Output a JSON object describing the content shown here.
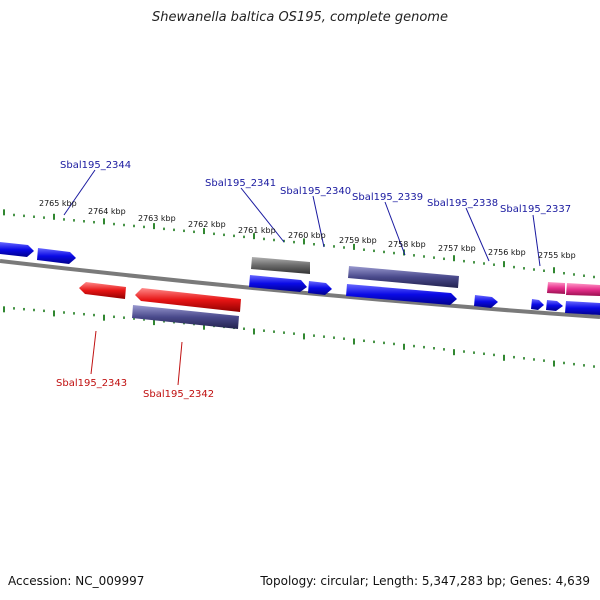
{
  "title": "Shewanella baltica OS195, complete genome",
  "footer": {
    "accession": "Accession: NC_009997",
    "summary": "Topology: circular; Length: 5,347,283 bp; Genes: 4,639"
  },
  "scale_labels": [
    "2765 kbp",
    "2764 kbp",
    "2763 kbp",
    "2762 kbp",
    "2761 kbp",
    "2760 kbp",
    "2759 kbp",
    "2758 kbp",
    "2757 kbp",
    "2756 kbp",
    "2755 kbp"
  ],
  "gene_labels": {
    "forward": [
      "Sbal195_2344",
      "Sbal195_2341",
      "Sbal195_2340",
      "Sbal195_2339",
      "Sbal195_2338",
      "Sbal195_2337"
    ],
    "reverse": [
      "Sbal195_2343",
      "Sbal195_2342"
    ]
  },
  "colors": {
    "forward_cds": "#0a0ae6",
    "reverse_cds": "#e61414",
    "rna": "#e6308c",
    "blast_hit": "#4a4a8c",
    "gray_hit": "#6a6a6a",
    "backbone": "#7a7a7a",
    "tick": "#1a7a1a",
    "forward_label": "#1a1aa0",
    "reverse_label": "#c01010"
  }
}
